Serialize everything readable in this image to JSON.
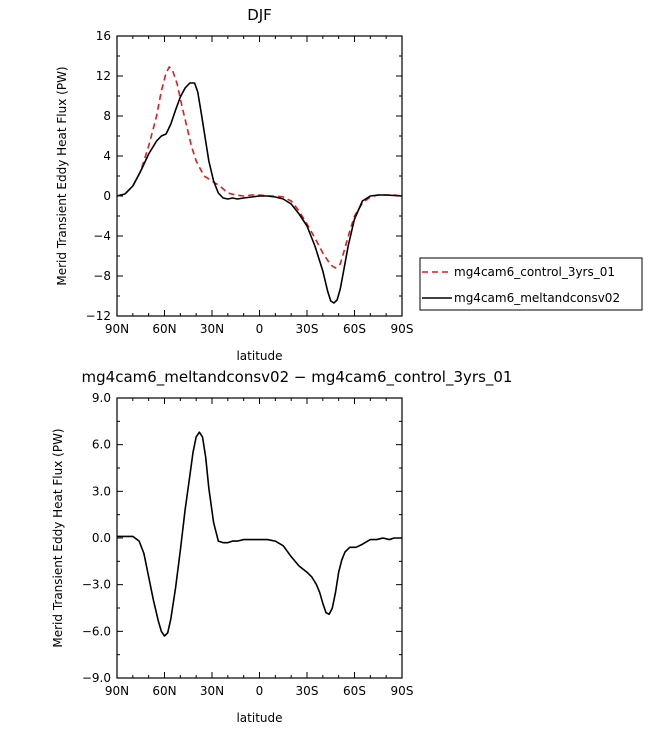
{
  "chart_data": [
    {
      "type": "line",
      "title": "DJF",
      "xlabel": "latitude",
      "ylabel": "Merid Transient Eddy Heat Flux (PW)",
      "xlim": [
        90,
        -90
      ],
      "ylim": [
        -12,
        16
      ],
      "xticks": [
        90,
        60,
        30,
        0,
        -30,
        -60,
        -90
      ],
      "xtick_labels": [
        "90N",
        "60N",
        "30N",
        "0",
        "30S",
        "60S",
        "90S"
      ],
      "yticks": [
        16,
        12,
        8,
        4,
        0,
        -4,
        -8,
        -12
      ],
      "ytick_labels": [
        "16",
        "12",
        "8",
        "4",
        "0",
        "−4",
        "−8",
        "−12"
      ],
      "legend_position": "right",
      "series": [
        {
          "name": "mg4cam6_control_3yrs_01",
          "color": "#e41a1c",
          "dash": "dashed",
          "x": [
            90,
            85,
            80,
            75,
            70,
            65,
            62,
            59,
            57,
            55,
            52,
            49,
            46,
            43,
            40,
            35,
            30,
            25,
            20,
            15,
            10,
            5,
            0,
            -5,
            -10,
            -15,
            -20,
            -25,
            -30,
            -35,
            -40,
            -45,
            -48,
            -51,
            -54,
            -57,
            -60,
            -65,
            -70,
            -75,
            -80,
            -85,
            -90
          ],
          "y": [
            0,
            0.2,
            1,
            2.5,
            5,
            8,
            10.5,
            12.3,
            12.9,
            12.6,
            11.2,
            9,
            7,
            5,
            3.5,
            2,
            1.5,
            1,
            0.3,
            0.1,
            0,
            0.1,
            0.1,
            0,
            0,
            -0.1,
            -0.5,
            -1.5,
            -2.8,
            -4.2,
            -5.7,
            -6.9,
            -7.2,
            -6.8,
            -5.2,
            -3.5,
            -2,
            -0.7,
            -0.1,
            0.1,
            0.1,
            0.1,
            0
          ]
        },
        {
          "name": "mg4cam6_meltandconsv02",
          "color": "#000000",
          "dash": "solid",
          "x": [
            90,
            85,
            80,
            75,
            70,
            65,
            62,
            59,
            56,
            53,
            50,
            47,
            44,
            41,
            39,
            37,
            35,
            32,
            29,
            26,
            23,
            20,
            17,
            14,
            10,
            5,
            0,
            -5,
            -10,
            -15,
            -20,
            -25,
            -30,
            -35,
            -40,
            -43,
            -45,
            -47,
            -49,
            -51,
            -53,
            -56,
            -60,
            -65,
            -70,
            -75,
            -80,
            -90
          ],
          "y": [
            0,
            0.2,
            1,
            2.5,
            4.2,
            5.5,
            6,
            6.2,
            7.2,
            8.6,
            9.9,
            10.8,
            11.3,
            11.3,
            10.4,
            8.5,
            6.5,
            3.5,
            1.5,
            0.3,
            -0.2,
            -0.3,
            -0.2,
            -0.3,
            -0.2,
            -0.1,
            0,
            0,
            -0.1,
            -0.3,
            -0.8,
            -1.8,
            -3,
            -5,
            -7.5,
            -9.5,
            -10.5,
            -10.7,
            -10.4,
            -9.3,
            -7.6,
            -5,
            -2.3,
            -0.5,
            0,
            0.1,
            0.1,
            0
          ]
        }
      ]
    },
    {
      "type": "line",
      "title": "mg4cam6_meltandconsv02 − mg4cam6_control_3yrs_01",
      "xlabel": "latitude",
      "ylabel": "Merid Transient Eddy Heat Flux (PW)",
      "xlim": [
        90,
        -90
      ],
      "ylim": [
        -9,
        9
      ],
      "xticks": [
        90,
        60,
        30,
        0,
        -30,
        -60,
        -90
      ],
      "xtick_labels": [
        "90N",
        "60N",
        "30N",
        "0",
        "30S",
        "60S",
        "90S"
      ],
      "yticks": [
        9,
        6,
        3,
        0,
        -3,
        -6,
        -9
      ],
      "ytick_labels": [
        "9.0",
        "6.0",
        "3.0",
        "0.0",
        "−3.0",
        "−6.0",
        "−9.0"
      ],
      "series": [
        {
          "color": "#000000",
          "dash": "solid",
          "x": [
            90,
            85,
            80,
            76,
            73,
            70,
            67,
            64,
            62,
            60,
            58,
            56,
            53,
            50,
            47,
            44,
            42,
            40,
            38,
            36,
            34,
            32,
            29,
            26,
            23,
            20,
            17,
            14,
            10,
            5,
            0,
            -5,
            -10,
            -15,
            -20,
            -25,
            -30,
            -33,
            -36,
            -38,
            -40,
            -42,
            -44,
            -46,
            -48,
            -50,
            -52,
            -54,
            -57,
            -61,
            -65,
            -70,
            -74,
            -78,
            -82,
            -85,
            -90
          ],
          "y": [
            0.1,
            0.1,
            0.1,
            -0.2,
            -1.0,
            -2.5,
            -4.0,
            -5.3,
            -6.0,
            -6.3,
            -6.1,
            -5.2,
            -3.2,
            -0.8,
            1.8,
            4.0,
            5.5,
            6.5,
            6.8,
            6.5,
            5.2,
            3.2,
            1.0,
            -0.2,
            -0.3,
            -0.3,
            -0.2,
            -0.2,
            -0.1,
            -0.1,
            -0.1,
            -0.1,
            -0.2,
            -0.5,
            -1.2,
            -1.8,
            -2.2,
            -2.5,
            -3.0,
            -3.5,
            -4.2,
            -4.8,
            -4.9,
            -4.5,
            -3.5,
            -2.2,
            -1.4,
            -0.9,
            -0.6,
            -0.6,
            -0.4,
            -0.1,
            -0.1,
            0.0,
            -0.1,
            0.0,
            0.0
          ]
        }
      ]
    }
  ]
}
